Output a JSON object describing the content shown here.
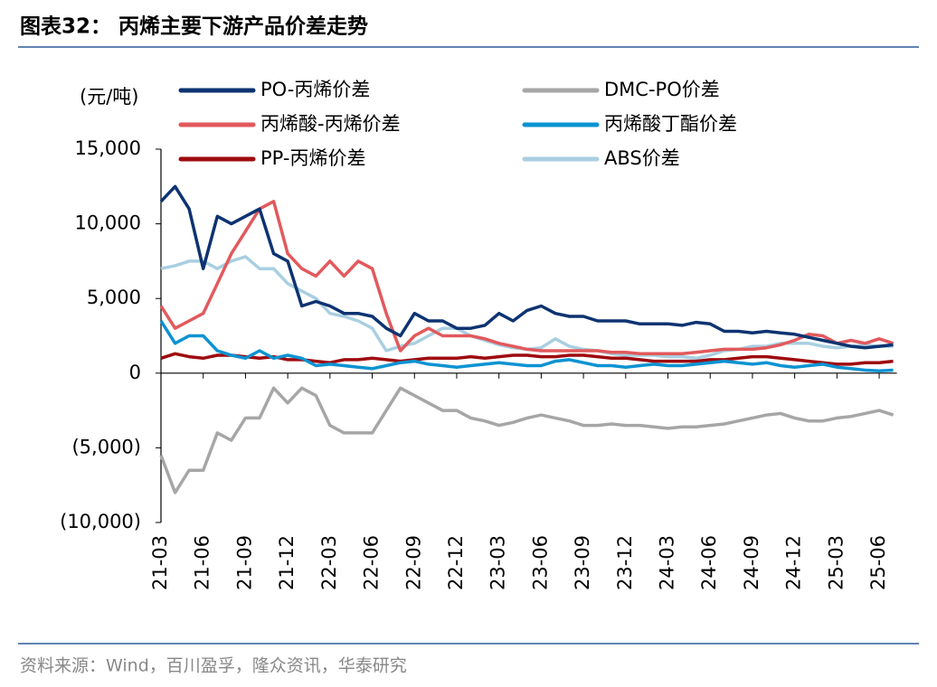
{
  "chart_data": {
    "type": "line",
    "title": "图表32：  丙烯主要下游产品价差走势",
    "y_label": "(元/吨)",
    "source": "资料来源：Wind，百川盈孚，隆众资讯，华泰研究",
    "categories": [
      "21-03",
      null,
      null,
      "21-06",
      null,
      null,
      "21-09",
      null,
      null,
      "21-12",
      null,
      null,
      "22-03",
      null,
      null,
      "22-06",
      null,
      null,
      "22-09",
      null,
      null,
      "22-12",
      null,
      null,
      "23-03",
      null,
      null,
      "23-06",
      null,
      null,
      "23-09",
      null,
      null,
      "23-12",
      null,
      null,
      "24-03",
      null,
      null,
      "24-06",
      null,
      null,
      "24-09",
      null,
      null,
      "24-12",
      null,
      null,
      "25-03",
      null,
      null,
      "25-06",
      null
    ],
    "ylim": [
      -10000,
      15000
    ],
    "yticks": [
      {
        "value": -10000,
        "label": "(10,000)"
      },
      {
        "value": -5000,
        "label": "(5,000)"
      },
      0,
      {
        "value": 5000,
        "label": "5,000"
      },
      {
        "value": 10000,
        "label": "10,000"
      },
      {
        "value": 15000,
        "label": "15,000"
      }
    ],
    "series": [
      {
        "name": "DMC-PO价差",
        "color": "#a6a6a6",
        "values": [
          -5500,
          -8000,
          -6500,
          -6500,
          -4000,
          -4500,
          -3000,
          -3000,
          -1000,
          -2000,
          -1000,
          -1500,
          -3500,
          -4000,
          -4000,
          -4000,
          -2500,
          -1000,
          -1500,
          -2000,
          -2500,
          -2500,
          -3000,
          -3200,
          -3500,
          -3300,
          -3000,
          -2800,
          -3000,
          -3200,
          -3500,
          -3500,
          -3400,
          -3500,
          -3500,
          -3600,
          -3700,
          -3600,
          -3600,
          -3500,
          -3400,
          -3200,
          -3000,
          -2800,
          -2700,
          -3000,
          -3200,
          -3200,
          -3000,
          -2900,
          -2700,
          -2500,
          -2800
        ]
      },
      {
        "name": "ABS价差",
        "color": "#a9cfe1",
        "values": [
          7000,
          7200,
          7500,
          7500,
          7000,
          7500,
          7800,
          7000,
          7000,
          6000,
          5500,
          5000,
          4000,
          3800,
          3500,
          3000,
          1500,
          1800,
          2000,
          2500,
          3000,
          3000,
          2500,
          2200,
          1900,
          1700,
          1600,
          1700,
          2300,
          1800,
          1600,
          1500,
          1300,
          1200,
          1200,
          1200,
          1100,
          1100,
          1000,
          1200,
          1500,
          1600,
          1800,
          1800,
          2000,
          2000,
          2000,
          1800,
          1700,
          1800,
          1900,
          1800,
          1800
        ]
      },
      {
        "name": "PP-丙烯价差",
        "color": "#9e0b0f",
        "values": [
          1000,
          1300,
          1100,
          1000,
          1200,
          1200,
          1100,
          1000,
          1100,
          900,
          900,
          800,
          700,
          900,
          900,
          1000,
          900,
          800,
          900,
          1000,
          1000,
          1000,
          1100,
          1000,
          1100,
          1200,
          1200,
          1100,
          1100,
          1200,
          1200,
          1100,
          1000,
          1000,
          900,
          800,
          800,
          800,
          800,
          900,
          900,
          1000,
          1100,
          1100,
          1000,
          900,
          800,
          700,
          600,
          600,
          700,
          700,
          800
        ]
      },
      {
        "name": "丙烯酸丁酯价差",
        "color": "#0c93d2",
        "values": [
          3500,
          2000,
          2500,
          2500,
          1500,
          1200,
          1000,
          1500,
          1000,
          1200,
          1000,
          500,
          600,
          500,
          400,
          300,
          500,
          700,
          800,
          600,
          500,
          400,
          500,
          600,
          700,
          600,
          500,
          500,
          800,
          900,
          700,
          500,
          500,
          400,
          500,
          600,
          500,
          500,
          600,
          700,
          800,
          700,
          600,
          700,
          500,
          400,
          500,
          600,
          400,
          300,
          200,
          150,
          200
        ]
      },
      {
        "name": "丙烯酸-丙烯价差",
        "color": "#e2595c",
        "values": [
          4500,
          3000,
          3500,
          4000,
          6000,
          8000,
          9500,
          11000,
          11500,
          8000,
          7000,
          6500,
          7500,
          6500,
          7500,
          7000,
          4000,
          1500,
          2500,
          3000,
          2500,
          2500,
          2500,
          2300,
          2000,
          1800,
          1600,
          1500,
          1500,
          1500,
          1500,
          1500,
          1400,
          1400,
          1300,
          1300,
          1300,
          1300,
          1400,
          1500,
          1600,
          1600,
          1600,
          1700,
          1900,
          2200,
          2600,
          2500,
          2000,
          2200,
          2000,
          2300,
          2000
        ]
      },
      {
        "name": "PO-丙烯价差",
        "color": "#0d3371",
        "values": [
          11500,
          12500,
          11000,
          7000,
          10500,
          10000,
          10500,
          11000,
          8000,
          7500,
          4500,
          4800,
          4500,
          4000,
          4000,
          3800,
          3000,
          2500,
          4000,
          3500,
          3500,
          3000,
          3000,
          3200,
          4000,
          3500,
          4200,
          4500,
          4000,
          3800,
          3800,
          3500,
          3500,
          3500,
          3300,
          3300,
          3300,
          3200,
          3400,
          3300,
          2800,
          2800,
          2700,
          2800,
          2700,
          2600,
          2400,
          2200,
          2000,
          1800,
          1700,
          1800,
          1900
        ]
      }
    ]
  }
}
